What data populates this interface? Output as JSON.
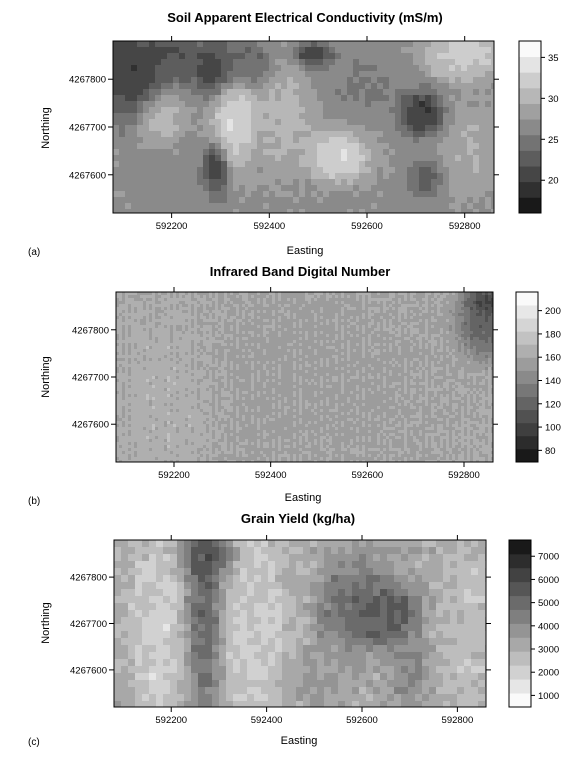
{
  "chart_data": [
    {
      "type": "heatmap",
      "panel_label": "(a)",
      "title": "Soil Apparent Electrical Conductivity (mS/m)",
      "xlabel": "Easting",
      "ylabel": "Northing",
      "xticks": [
        "592200",
        "592400",
        "592600",
        "592800"
      ],
      "yticks": [
        "4267800",
        "4267700",
        "4267600"
      ],
      "xlim": [
        592080,
        592860
      ],
      "ylim": [
        4267520,
        4267880
      ],
      "legend_ticks": [
        "35",
        "30",
        "25",
        "20"
      ],
      "legend_range": [
        16,
        37
      ],
      "legend_bands": 11,
      "blobs": [
        {
          "x": 592110,
          "y": 4267810,
          "rx": 60,
          "ry": 70,
          "v": 18
        },
        {
          "x": 592170,
          "y": 4267855,
          "rx": 90,
          "ry": 30,
          "v": 20
        },
        {
          "x": 592220,
          "y": 4267820,
          "rx": 25,
          "ry": 25,
          "v": 22
        },
        {
          "x": 592180,
          "y": 4267720,
          "rx": 35,
          "ry": 40,
          "v": 32
        },
        {
          "x": 592290,
          "y": 4267820,
          "rx": 35,
          "ry": 45,
          "v": 18
        },
        {
          "x": 592290,
          "y": 4267610,
          "rx": 20,
          "ry": 40,
          "v": 17
        },
        {
          "x": 592330,
          "y": 4267720,
          "rx": 35,
          "ry": 80,
          "v": 35
        },
        {
          "x": 592360,
          "y": 4267830,
          "rx": 40,
          "ry": 40,
          "v": 22
        },
        {
          "x": 592430,
          "y": 4267720,
          "rx": 45,
          "ry": 90,
          "v": 31
        },
        {
          "x": 592490,
          "y": 4267850,
          "rx": 30,
          "ry": 20,
          "v": 18
        },
        {
          "x": 592540,
          "y": 4267640,
          "rx": 50,
          "ry": 40,
          "v": 35
        },
        {
          "x": 592600,
          "y": 4267780,
          "rx": 60,
          "ry": 55,
          "v": 25
        },
        {
          "x": 592710,
          "y": 4267730,
          "rx": 35,
          "ry": 35,
          "v": 17
        },
        {
          "x": 592720,
          "y": 4267590,
          "rx": 30,
          "ry": 30,
          "v": 22
        },
        {
          "x": 592800,
          "y": 4267850,
          "rx": 60,
          "ry": 40,
          "v": 34
        },
        {
          "x": 592820,
          "y": 4267650,
          "rx": 50,
          "ry": 70,
          "v": 30
        },
        {
          "x": 592210,
          "y": 4267580,
          "rx": 60,
          "ry": 50,
          "v": 26
        }
      ],
      "base_value": 27
    },
    {
      "type": "heatmap",
      "panel_label": "(b)",
      "title": "Infrared Band Digital Number",
      "xlabel": "Easting",
      "ylabel": "Northing",
      "xticks": [
        "592200",
        "592400",
        "592600",
        "592800"
      ],
      "yticks": [
        "4267800",
        "4267700",
        "4267600"
      ],
      "xlim": [
        592080,
        592860
      ],
      "ylim": [
        4267520,
        4267880
      ],
      "legend_ticks": [
        "200",
        "180",
        "160",
        "140",
        "120",
        "100",
        "80"
      ],
      "legend_range": [
        70,
        216
      ],
      "legend_bands": 13,
      "blobs": [
        {
          "x": 592840,
          "y": 4267820,
          "rx": 40,
          "ry": 60,
          "v": 100
        },
        {
          "x": 592850,
          "y": 4267860,
          "rx": 30,
          "ry": 20,
          "v": 80
        },
        {
          "x": 592450,
          "y": 4267700,
          "rx": 250,
          "ry": 200,
          "v": 155
        },
        {
          "x": 592200,
          "y": 4267650,
          "rx": 80,
          "ry": 150,
          "v": 170
        }
      ],
      "base_value": 162
    },
    {
      "type": "heatmap",
      "panel_label": "(c)",
      "title": "Grain Yield (kg/ha)",
      "xlabel": "Easting",
      "ylabel": "Northing",
      "xticks": [
        "592200",
        "592400",
        "592600",
        "592800"
      ],
      "yticks": [
        "4267800",
        "4267700",
        "4267600"
      ],
      "xlim": [
        592080,
        592860
      ],
      "ylim": [
        4267520,
        4267880
      ],
      "legend_ticks": [
        "7000",
        "6000",
        "5000",
        "4000",
        "3000",
        "2000",
        "1000"
      ],
      "legend_range": [
        500,
        7700
      ],
      "legend_bands": 12,
      "blobs": [
        {
          "x": 592170,
          "y": 4267680,
          "rx": 45,
          "ry": 150,
          "v": 1500
        },
        {
          "x": 592270,
          "y": 4267720,
          "rx": 30,
          "ry": 160,
          "v": 5800
        },
        {
          "x": 592280,
          "y": 4267840,
          "rx": 40,
          "ry": 30,
          "v": 6800
        },
        {
          "x": 592380,
          "y": 4267700,
          "rx": 60,
          "ry": 170,
          "v": 1800
        },
        {
          "x": 592470,
          "y": 4267800,
          "rx": 30,
          "ry": 60,
          "v": 3000
        },
        {
          "x": 592580,
          "y": 4267740,
          "rx": 60,
          "ry": 70,
          "v": 5500
        },
        {
          "x": 592650,
          "y": 4267720,
          "rx": 50,
          "ry": 50,
          "v": 6500
        },
        {
          "x": 592700,
          "y": 4267600,
          "rx": 30,
          "ry": 60,
          "v": 4500
        },
        {
          "x": 592820,
          "y": 4267700,
          "rx": 40,
          "ry": 170,
          "v": 2200
        },
        {
          "x": 592500,
          "y": 4267580,
          "rx": 60,
          "ry": 50,
          "v": 3800
        }
      ],
      "base_value": 3200
    }
  ]
}
